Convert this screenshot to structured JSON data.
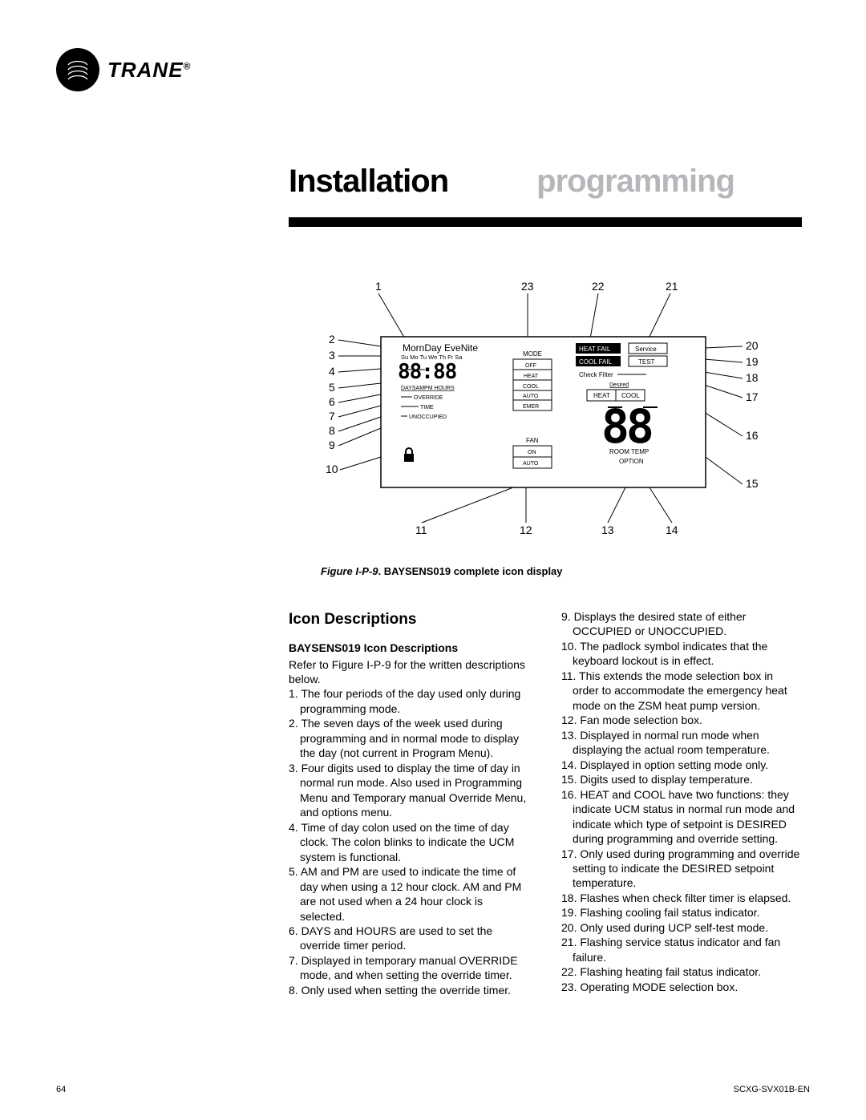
{
  "brand": "TRANE",
  "headings": {
    "left": "Installation",
    "right": "programming"
  },
  "figure": {
    "caption_prefix": "Figure I-P-9",
    "caption_rest": ". BAYSENS019 complete icon display",
    "callouts_top": [
      "1",
      "23",
      "22",
      "21"
    ],
    "callouts_left": [
      "2",
      "3",
      "4",
      "5",
      "6",
      "7",
      "8",
      "9",
      "10"
    ],
    "callouts_bottom": [
      "11",
      "12",
      "13",
      "14"
    ],
    "callouts_right": [
      "20",
      "19",
      "18",
      "17",
      "16",
      "15"
    ],
    "panel": {
      "periods": "MornDay EveNite",
      "days": "Su Mo Tu We Th Fr Sa",
      "time": "88:88",
      "daysampm": "DAYSAMPM HOURS",
      "override": "OVERRIDE",
      "time_label": "TIME",
      "unoccupied": "UNOCCUPIED",
      "mode_label": "MODE",
      "mode_opts": [
        "OFF",
        "HEAT",
        "COOL",
        "AUTO",
        "EMER"
      ],
      "fan_label": "FAN",
      "fan_opts": [
        "ON",
        "AUTO"
      ],
      "heat_fail": "HEAT FAIL",
      "cool_fail": "COOL FAIL",
      "service": "Service",
      "test": "TEST",
      "check_filter": "Check Filter",
      "desired": "Desired",
      "heat": "HEAT",
      "cool": "COOL",
      "big_digits": "88",
      "room_temp": "ROOM TEMP",
      "option": "OPTION"
    }
  },
  "section_title": "Icon Descriptions",
  "subhead": "BAYSENS019 Icon Descriptions",
  "intro": "Refer to Figure I-P-9 for the written descriptions below.",
  "items_left": [
    "1. The four periods of the day used only during programming mode.",
    "2. The seven days of the week used during programming and in normal mode to display the day (not current in Program Menu).",
    "3. Four digits used to display the time of day in normal run mode. Also used in Programming Menu and Temporary manual Override Menu, and options menu.",
    "4. Time of day colon used on the time of day clock. The colon blinks to indicate the UCM system is functional.",
    "5. AM and PM are used to indicate the time of day when using a 12 hour clock. AM and PM are not used when a 24 hour clock is selected.",
    "6. DAYS and HOURS are used to set the override timer period.",
    "7. Displayed in temporary manual OVERRIDE mode, and when setting the override timer.",
    "8. Only used when setting the override timer."
  ],
  "items_right": [
    "9. Displays the desired state of either OCCUPIED or UNOCCUPIED.",
    "10. The padlock symbol indicates that the keyboard lockout is in effect.",
    "11. This extends the mode selection box in order to accommodate the emergency heat mode on the ZSM heat pump version.",
    "12. Fan mode selection box.",
    "13. Displayed in normal run mode when displaying the actual room temperature.",
    "14. Displayed in option setting mode only.",
    "15. Digits used to display temperature.",
    "16. HEAT and COOL have two functions: they indicate UCM status in normal run mode and indicate which type of setpoint is DESIRED during programming and override setting.",
    "17. Only used during programming and override setting to indicate the DESIRED setpoint temperature.",
    "18. Flashes when check filter timer is elapsed.",
    "19. Flashing cooling fail status indicator.",
    "20. Only used during UCP self-test mode.",
    "21. Flashing service status indicator and fan failure.",
    "22. Flashing heating fail status indicator.",
    "23. Operating MODE selection box."
  ],
  "page_number": "64",
  "doc_id": "SCXG-SVX01B-EN"
}
